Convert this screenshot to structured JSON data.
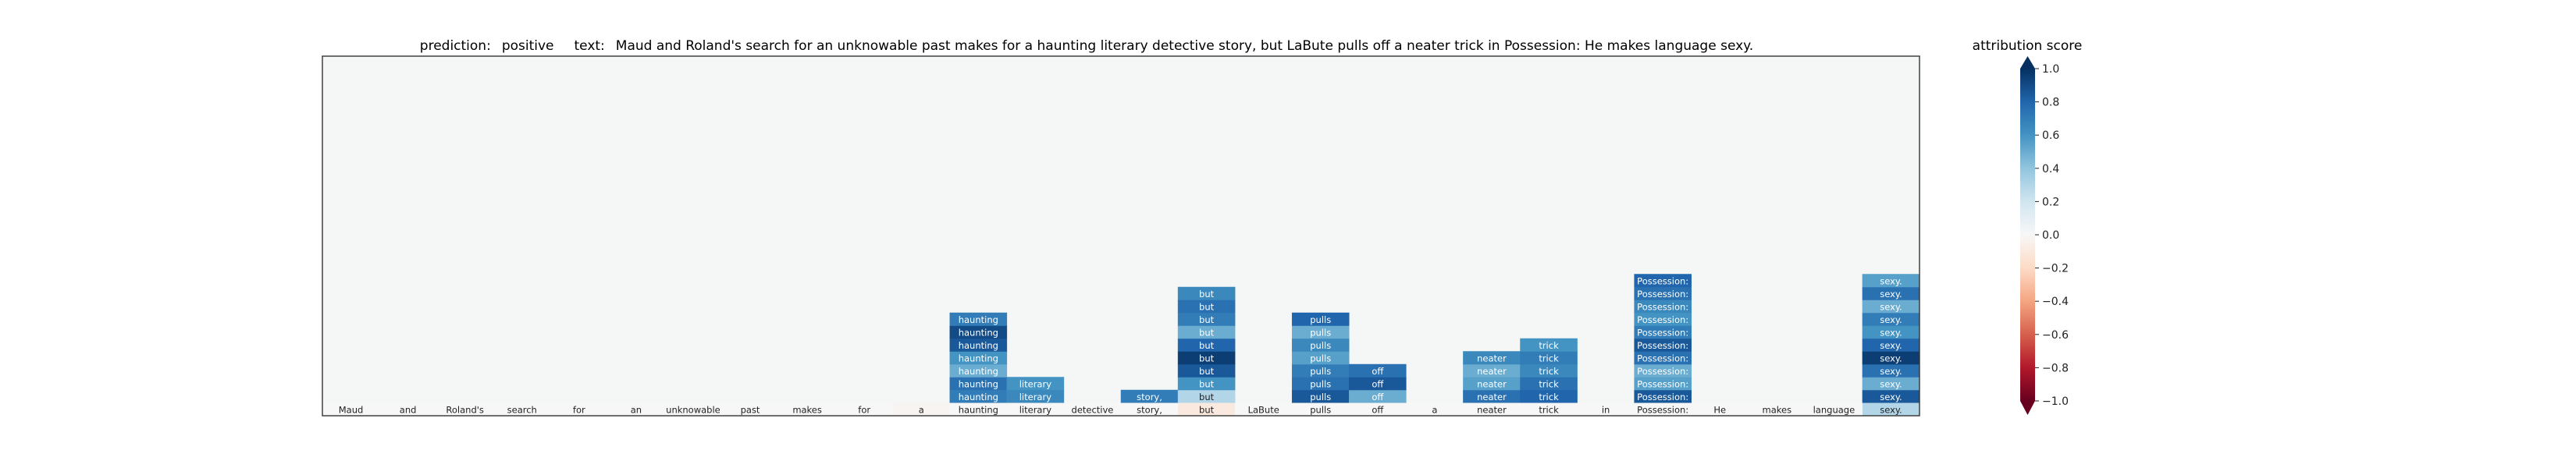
{
  "chart_data": {
    "type": "heatmap",
    "title": {
      "prediction_label": "prediction:",
      "prediction": "positive",
      "text_label": "text:",
      "text": "Maud and Roland's search for an unknowable past makes for a haunting literary detective story, but LaBute pulls off a neater trick in Possession: He makes language sexy."
    },
    "tokens": [
      "Maud",
      "and",
      "Roland's",
      "search",
      "for",
      "an",
      "unknowable",
      "past",
      "makes",
      "for",
      "a",
      "haunting",
      "literary",
      "detective",
      "story,",
      "but",
      "LaBute",
      "pulls",
      "off",
      "a",
      "neater",
      "trick",
      "in",
      "Possession:",
      "He",
      "makes",
      "language",
      "sexy."
    ],
    "base_row_scores": [
      0,
      0,
      0,
      0,
      0,
      0,
      0,
      0,
      0,
      0,
      -0.02,
      0,
      0,
      0,
      0,
      -0.1,
      0,
      0,
      0,
      0,
      0,
      0,
      0,
      0,
      0,
      0,
      0,
      0.3
    ],
    "columns": [
      {
        "token_index": 11,
        "values": [
          0.7,
          0.75,
          0.5,
          0.6,
          0.85,
          0.9,
          0.7
        ]
      },
      {
        "token_index": 12,
        "values": [
          0.65,
          0.6
        ]
      },
      {
        "token_index": 14,
        "values": [
          0.7
        ]
      },
      {
        "token_index": 15,
        "values": [
          0.3,
          0.6,
          0.85,
          0.95,
          0.8,
          0.5,
          0.7,
          0.75,
          0.65
        ]
      },
      {
        "token_index": 17,
        "values": [
          0.85,
          0.75,
          0.7,
          0.55,
          0.65,
          0.5,
          0.8
        ]
      },
      {
        "token_index": 18,
        "values": [
          0.5,
          0.85,
          0.75
        ]
      },
      {
        "token_index": 20,
        "values": [
          0.75,
          0.55,
          0.5,
          0.65
        ]
      },
      {
        "token_index": 21,
        "values": [
          0.8,
          0.75,
          0.65,
          0.7,
          0.6
        ]
      },
      {
        "token_index": 23,
        "values": [
          0.85,
          0.55,
          0.5,
          0.75,
          0.85,
          0.7,
          0.6,
          0.65,
          0.75,
          0.8
        ]
      },
      {
        "token_index": 27,
        "values": [
          0.85,
          0.5,
          0.75,
          0.95,
          0.8,
          0.6,
          0.7,
          0.5,
          0.75,
          0.55
        ]
      }
    ],
    "colorbar": {
      "label": "attribution score",
      "range": [
        -1,
        1
      ],
      "ticks": [
        "−1.0",
        "−0.8",
        "−0.6",
        "−0.4",
        "−0.2",
        "0.0",
        "0.2",
        "0.4",
        "0.6",
        "0.8",
        "1.0"
      ],
      "colormap": "RdBu"
    },
    "grid": false,
    "background_color": "#f5f7f6"
  }
}
